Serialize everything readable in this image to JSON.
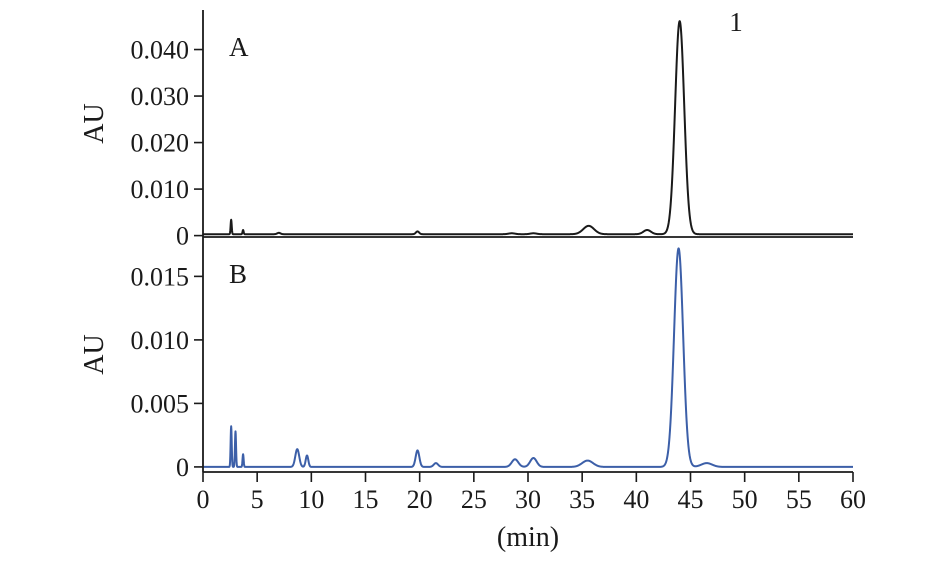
{
  "chart_data": [
    {
      "type": "line",
      "panel_label": "A",
      "ylabel": "AU",
      "xlabel": "",
      "color": "#1a1a1a",
      "ylim": [
        -0.0003,
        0.0485
      ],
      "xlim": [
        0,
        60
      ],
      "y_tick_values": [
        0,
        0.01,
        0.02,
        0.03,
        0.04
      ],
      "y_tick_labels": [
        "0",
        "0.010",
        "0.020",
        "0.030",
        "0.040"
      ],
      "annotations": [
        {
          "text": "1",
          "x": 49.2,
          "y": 0.0458
        }
      ],
      "baseline": 0.0003,
      "peaks": [
        {
          "rt": 2.6,
          "height": 0.0031,
          "width": 0.05
        },
        {
          "rt": 3.7,
          "height": 0.0009,
          "width": 0.05
        },
        {
          "rt": 7.0,
          "height": 0.0003,
          "width": 0.15
        },
        {
          "rt": 19.8,
          "height": 0.0006,
          "width": 0.15
        },
        {
          "rt": 28.5,
          "height": 0.0002,
          "width": 0.3
        },
        {
          "rt": 30.5,
          "height": 0.0002,
          "width": 0.3
        },
        {
          "rt": 35.6,
          "height": 0.0018,
          "width": 0.5
        },
        {
          "rt": 41.0,
          "height": 0.0009,
          "width": 0.35
        },
        {
          "rt": 44.0,
          "height": 0.0458,
          "width": 0.42
        }
      ]
    },
    {
      "type": "line",
      "panel_label": "B",
      "ylabel": "AU",
      "xlabel": "(min)",
      "color": "#3c5fa8",
      "ylim": [
        -0.0004,
        0.0181
      ],
      "xlim": [
        0,
        60
      ],
      "x_tick_values": [
        0,
        5,
        10,
        15,
        20,
        25,
        30,
        35,
        40,
        45,
        50,
        55,
        60
      ],
      "x_tick_labels": [
        "0",
        "5",
        "10",
        "15",
        "20",
        "25",
        "30",
        "35",
        "40",
        "45",
        "50",
        "55",
        "60"
      ],
      "y_tick_values": [
        0,
        0.005,
        0.01,
        0.015
      ],
      "y_tick_labels": [
        "0",
        "0.005",
        "0.010",
        "0.015"
      ],
      "baseline": 0,
      "peaks": [
        {
          "rt": 2.6,
          "height": 0.0032,
          "width": 0.05
        },
        {
          "rt": 3.0,
          "height": 0.0028,
          "width": 0.05
        },
        {
          "rt": 3.7,
          "height": 0.001,
          "width": 0.05
        },
        {
          "rt": 8.7,
          "height": 0.0014,
          "width": 0.18
        },
        {
          "rt": 9.6,
          "height": 0.0009,
          "width": 0.12
        },
        {
          "rt": 19.8,
          "height": 0.0013,
          "width": 0.17
        },
        {
          "rt": 21.5,
          "height": 0.0003,
          "width": 0.2
        },
        {
          "rt": 28.8,
          "height": 0.0006,
          "width": 0.3
        },
        {
          "rt": 30.5,
          "height": 0.0007,
          "width": 0.3
        },
        {
          "rt": 35.5,
          "height": 0.0005,
          "width": 0.5
        },
        {
          "rt": 43.9,
          "height": 0.0172,
          "width": 0.42
        },
        {
          "rt": 46.5,
          "height": 0.0003,
          "width": 0.5
        }
      ]
    }
  ]
}
